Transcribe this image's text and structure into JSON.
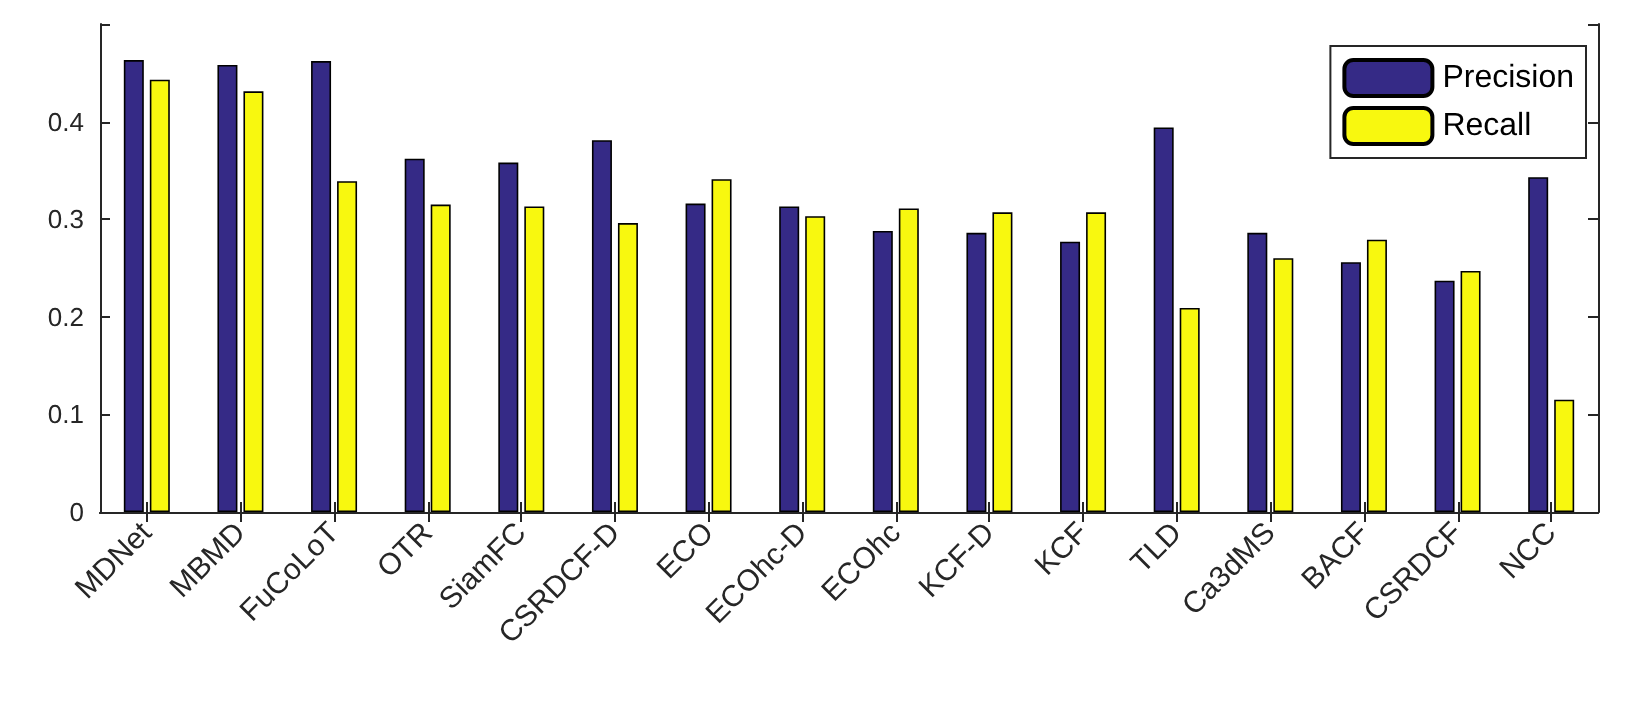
{
  "chart_data": {
    "type": "bar",
    "categories": [
      "MDNet",
      "MBMD",
      "FuCoLoT",
      "OTR",
      "SiamFC",
      "CSRDCF-D",
      "ECO",
      "ECOhc-D",
      "ECOhc",
      "KCF-D",
      "KCF",
      "TLD",
      "Ca3dMS",
      "BACF",
      "CSRDCF",
      "NCC"
    ],
    "series": [
      {
        "name": "Precision",
        "color": "#352a86",
        "values": [
          0.463,
          0.458,
          0.462,
          0.362,
          0.358,
          0.381,
          0.316,
          0.313,
          0.288,
          0.286,
          0.277,
          0.394,
          0.286,
          0.256,
          0.237,
          0.343
        ]
      },
      {
        "name": "Recall",
        "color": "#f8f80f",
        "values": [
          0.443,
          0.431,
          0.339,
          0.315,
          0.313,
          0.296,
          0.341,
          0.303,
          0.311,
          0.307,
          0.307,
          0.209,
          0.26,
          0.279,
          0.247,
          0.115
        ]
      }
    ],
    "ylim": [
      0,
      0.5
    ],
    "yticks": [
      0,
      0.1,
      0.2,
      0.3,
      0.4,
      {
        "value": 0.5,
        "label": null
      }
    ],
    "grid": false,
    "legend": "top right"
  }
}
